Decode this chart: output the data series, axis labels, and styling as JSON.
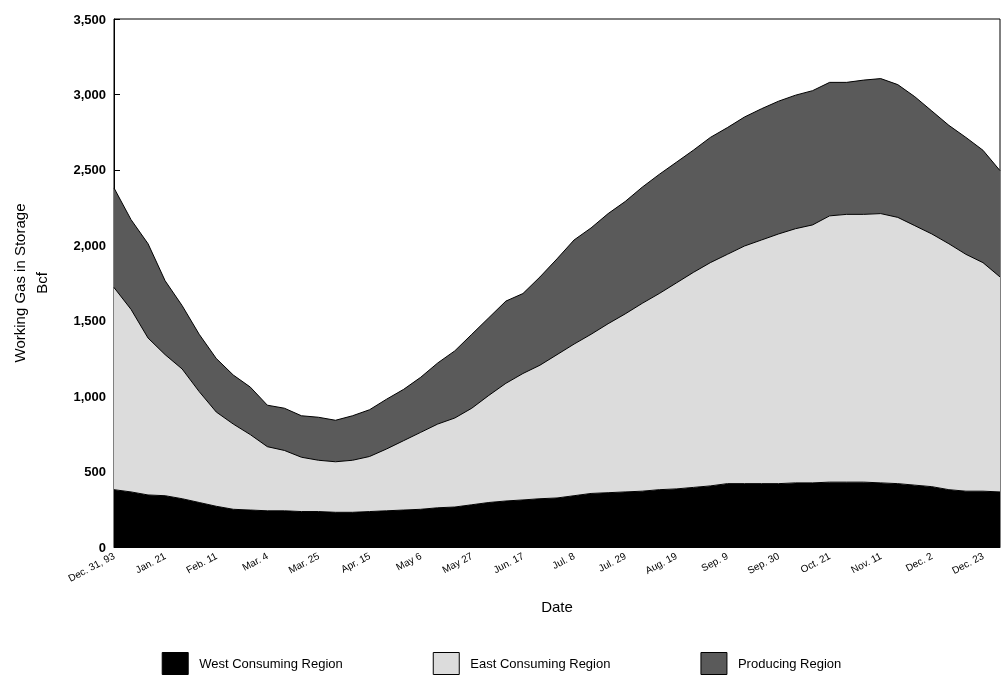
{
  "chart_data": {
    "type": "area",
    "stacked": true,
    "xlabel": "Date",
    "ylabel": "Working Gas in Storage\nBcf",
    "categories": [
      "Dec. 31, 93",
      null,
      null,
      "Jan. 21",
      null,
      null,
      "Feb. 11",
      null,
      null,
      "Mar. 4",
      null,
      null,
      "Mar. 25",
      null,
      null,
      "Apr. 15",
      null,
      null,
      "May 6",
      null,
      null,
      "May 27",
      null,
      null,
      "Jun. 17",
      null,
      null,
      "Jul. 8",
      null,
      null,
      "Jul. 29",
      null,
      null,
      "Aug. 19",
      null,
      null,
      "Sep. 9",
      null,
      null,
      "Sep. 30",
      null,
      null,
      "Oct. 21",
      null,
      null,
      "Nov. 11",
      null,
      null,
      "Dec. 2",
      null,
      null,
      "Dec. 23",
      null
    ],
    "series": [
      {
        "name": "West Consuming Region",
        "color": "#000000",
        "values": [
          380,
          365,
          345,
          340,
          320,
          295,
          270,
          250,
          245,
          240,
          240,
          235,
          235,
          230,
          230,
          235,
          240,
          245,
          250,
          260,
          265,
          280,
          295,
          305,
          312,
          320,
          325,
          340,
          355,
          360,
          365,
          370,
          380,
          385,
          395,
          405,
          420,
          420,
          420,
          420,
          425,
          425,
          430,
          430,
          430,
          425,
          420,
          410,
          400,
          380,
          370,
          370,
          365
        ]
      },
      {
        "name": "East Consuming Region",
        "color": "#dcdcdc",
        "values": [
          1340,
          1210,
          1040,
          935,
          860,
          735,
          625,
          565,
          500,
          425,
          400,
          360,
          340,
          335,
          345,
          365,
          410,
          460,
          510,
          555,
          590,
          640,
          710,
          780,
          838,
          885,
          950,
          1005,
          1055,
          1120,
          1180,
          1245,
          1300,
          1365,
          1425,
          1480,
          1520,
          1575,
          1615,
          1655,
          1685,
          1710,
          1765,
          1775,
          1775,
          1785,
          1765,
          1720,
          1675,
          1630,
          1570,
          1515,
          1425
        ]
      },
      {
        "name": "Producing Region",
        "color": "#5a5a5a",
        "values": [
          660,
          595,
          625,
          490,
          420,
          380,
          355,
          325,
          315,
          275,
          280,
          275,
          285,
          275,
          295,
          310,
          330,
          340,
          365,
          405,
          445,
          490,
          515,
          545,
          530,
          585,
          635,
          690,
          705,
          730,
          745,
          770,
          790,
          800,
          810,
          830,
          840,
          855,
          870,
          880,
          885,
          890,
          885,
          875,
          890,
          895,
          880,
          855,
          815,
          785,
          775,
          745,
          705
        ]
      }
    ],
    "ylim": [
      0,
      3500
    ],
    "yticks": [
      0,
      {
        "value": 500,
        "label": "500"
      },
      {
        "value": 1000,
        "label": "1,000"
      },
      {
        "value": 1500,
        "label": "1,500"
      },
      {
        "value": 2000,
        "label": "2,000"
      },
      {
        "value": 2500,
        "label": "2,500"
      },
      {
        "value": 3000,
        "label": "3,000"
      },
      {
        "value": 3500,
        "label": "3,500"
      }
    ],
    "grid": false,
    "legend": "bottom",
    "marker": "none",
    "line_style": "solid"
  }
}
